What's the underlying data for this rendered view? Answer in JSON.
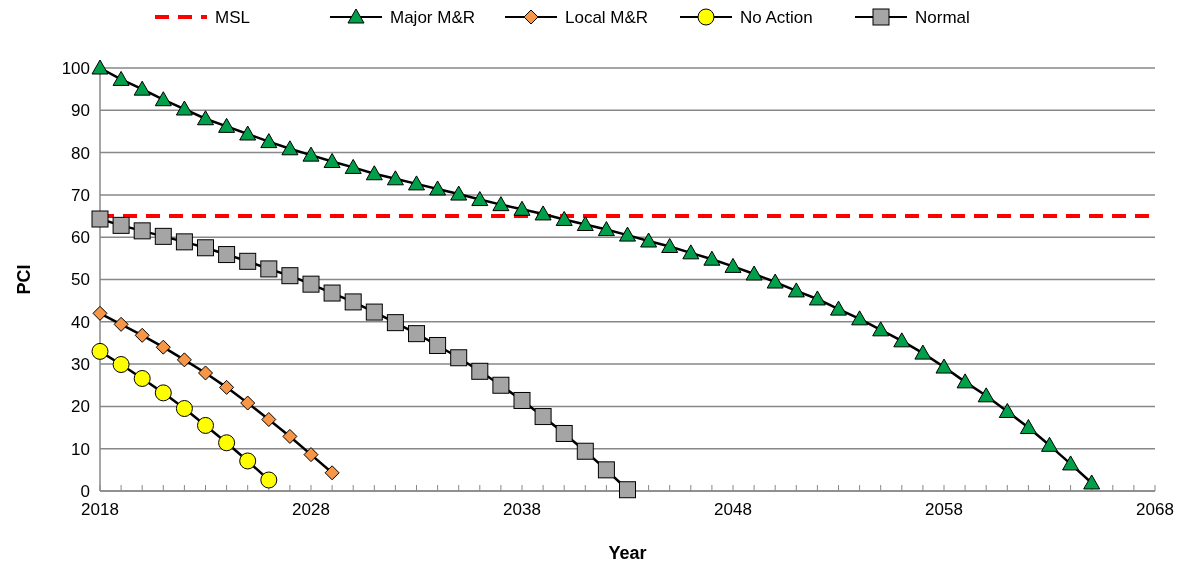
{
  "chart_data": {
    "type": "line",
    "xlabel": "Year",
    "ylabel": "PCI",
    "xlim": [
      2018,
      2068
    ],
    "xticks": [
      2018,
      2028,
      2038,
      2048,
      2058,
      2068
    ],
    "ylim": [
      0,
      100
    ],
    "yticks": [
      0,
      10,
      20,
      30,
      40,
      50,
      60,
      70,
      80,
      90,
      100
    ],
    "grid": "y",
    "legend": "top",
    "series": [
      {
        "name": "MSL",
        "color": "#ff0000",
        "line_style": "dashed",
        "marker": "none",
        "x": [
          2018,
          2068
        ],
        "values": [
          65,
          65
        ]
      },
      {
        "name": "Major M&R",
        "color": "#00a04b",
        "marker": "triangle",
        "x": [
          2018,
          2019,
          2020,
          2021,
          2022,
          2023,
          2024,
          2025,
          2026,
          2027,
          2028,
          2029,
          2030,
          2031,
          2032,
          2033,
          2034,
          2035,
          2036,
          2037,
          2038,
          2039,
          2040,
          2041,
          2042,
          2043,
          2044,
          2045,
          2046,
          2047,
          2048,
          2049,
          2050,
          2051,
          2052,
          2053,
          2054,
          2055,
          2056,
          2057,
          2058,
          2059,
          2060,
          2061,
          2062,
          2063,
          2064,
          2065
        ],
        "values": [
          100,
          97.3,
          95,
          92.5,
          90.3,
          88,
          86.2,
          84.4,
          82.6,
          80.9,
          79.4,
          77.9,
          76.5,
          75,
          73.8,
          72.6,
          71.4,
          70.2,
          68.9,
          67.7,
          66.6,
          65.5,
          64.2,
          63,
          61.8,
          60.5,
          59.1,
          57.8,
          56.3,
          54.8,
          53.1,
          51.3,
          49.4,
          47.3,
          45.4,
          43,
          40.7,
          38.1,
          35.5,
          32.6,
          29.3,
          25.8,
          22.5,
          18.8,
          15,
          10.8,
          6.4,
          1.9
        ]
      },
      {
        "name": "Local M&R",
        "color": "#f79646",
        "marker": "diamond",
        "x": [
          2018,
          2019,
          2020,
          2021,
          2022,
          2023,
          2024,
          2025,
          2026,
          2027,
          2028,
          2029
        ],
        "values": [
          42,
          39.4,
          36.8,
          34,
          31,
          27.9,
          24.5,
          20.8,
          16.9,
          12.9,
          8.6,
          4.3
        ]
      },
      {
        "name": "No Action",
        "color": "#ffff00",
        "marker": "circle",
        "x": [
          2018,
          2019,
          2020,
          2021,
          2022,
          2023,
          2024,
          2025,
          2026
        ],
        "values": [
          33,
          29.9,
          26.6,
          23.2,
          19.5,
          15.5,
          11.4,
          7.1,
          2.6
        ]
      },
      {
        "name": "Normal",
        "color": "#a5a5a5",
        "marker": "square",
        "x": [
          2018,
          2019,
          2020,
          2021,
          2022,
          2023,
          2024,
          2025,
          2026,
          2027,
          2028,
          2029,
          2030,
          2031,
          2032,
          2033,
          2034,
          2035,
          2036,
          2037,
          2038,
          2039,
          2040,
          2041,
          2042,
          2043
        ],
        "values": [
          64.3,
          62.8,
          61.5,
          60.2,
          58.9,
          57.5,
          55.9,
          54.3,
          52.5,
          50.9,
          48.9,
          46.8,
          44.7,
          42.3,
          39.8,
          37.2,
          34.4,
          31.5,
          28.3,
          25,
          21.4,
          17.6,
          13.6,
          9.4,
          5,
          0.3
        ]
      }
    ]
  }
}
